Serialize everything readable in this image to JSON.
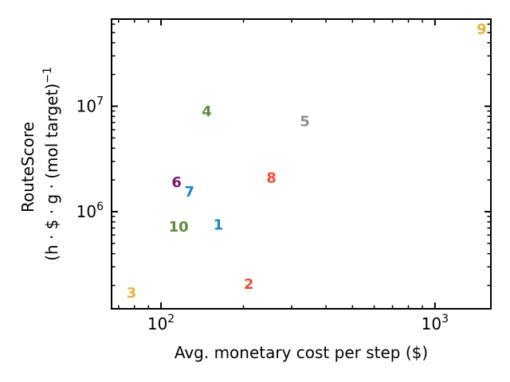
{
  "chart_data": {
    "type": "scatter",
    "title": "",
    "xlabel": "Avg. monetary cost per step ($)",
    "ylabel_line1": "RouteScore",
    "ylabel_line2": "(h · $ · g · (mol target)",
    "ylabel_sup": "−1",
    "xscale": "log",
    "yscale": "log",
    "xlim": [
      66,
      1600
    ],
    "ylim": [
      120000,
      67000000
    ],
    "grid": false,
    "x_ticks": [
      {
        "value": 100,
        "base": "10",
        "exp": "2"
      },
      {
        "value": 1000,
        "base": "10",
        "exp": "3"
      }
    ],
    "y_ticks": [
      {
        "value": 1000000,
        "base": "10",
        "exp": "6"
      },
      {
        "value": 10000000,
        "base": "10",
        "exp": "7"
      }
    ],
    "points": [
      {
        "label": "1",
        "x": 162,
        "y": 750000,
        "color": "#1a87c9"
      },
      {
        "label": "2",
        "x": 209,
        "y": 205000,
        "color": "#f24a30"
      },
      {
        "label": "3",
        "x": 78,
        "y": 170000,
        "color": "#e3b43a"
      },
      {
        "label": "4",
        "x": 147,
        "y": 8900000,
        "color": "#5e8a3c"
      },
      {
        "label": "5",
        "x": 335,
        "y": 7200000,
        "color": "#8c8c8c"
      },
      {
        "label": "6",
        "x": 114,
        "y": 1900000,
        "color": "#7a1a6e"
      },
      {
        "label": "7",
        "x": 127,
        "y": 1550000,
        "color": "#1a87c9"
      },
      {
        "label": "8",
        "x": 253,
        "y": 2100000,
        "color": "#f24a30"
      },
      {
        "label": "9",
        "x": 1480,
        "y": 54000000,
        "color": "#e3b43a"
      },
      {
        "label": "10",
        "x": 116,
        "y": 720000,
        "color": "#5e8a3c"
      }
    ]
  }
}
